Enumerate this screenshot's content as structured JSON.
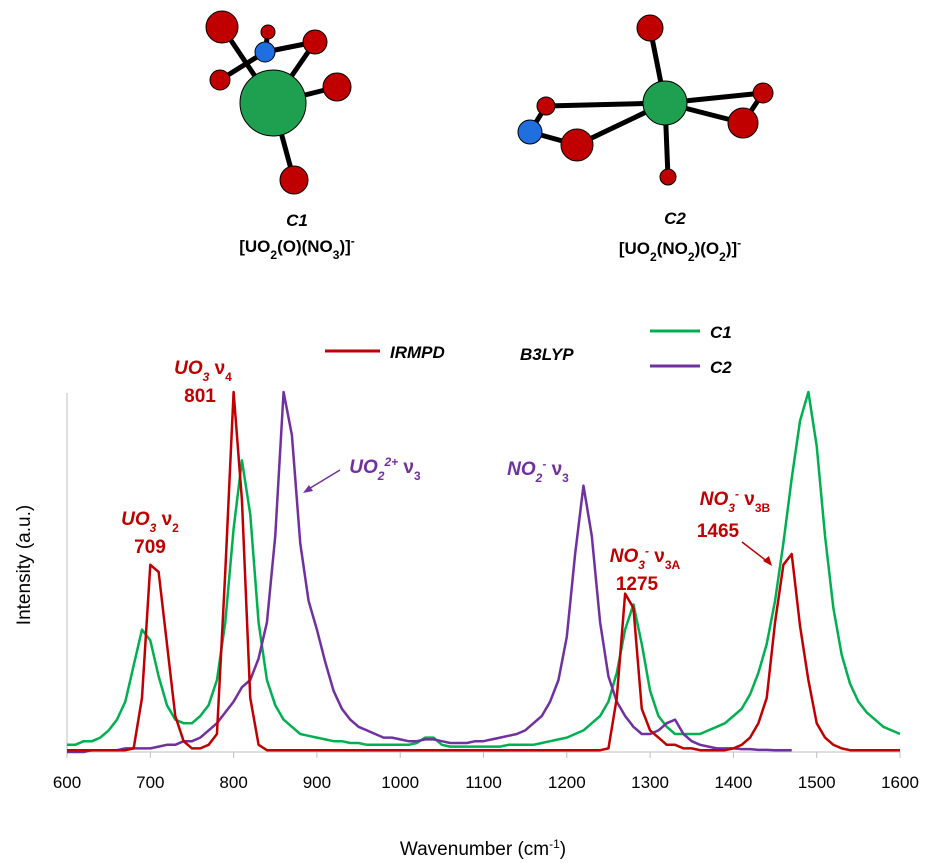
{
  "structures": [
    {
      "name": "C1",
      "formula": [
        "[UO",
        "2",
        "(O)(NO",
        "3",
        ")]",
        "-"
      ]
    },
    {
      "name": "C2",
      "formula": [
        "[UO",
        "2",
        "(NO",
        "2",
        ")(O",
        "2",
        ")]",
        "-"
      ]
    }
  ],
  "chart_data": {
    "type": "line",
    "x_label": [
      "Wavenumber (cm",
      "-1",
      ")"
    ],
    "y_label": "Intensity (a.u.)",
    "legend_group": "B3LYP",
    "xlim": [
      600,
      1600
    ],
    "ylim": [
      0,
      1
    ],
    "xticks": [
      600,
      700,
      800,
      900,
      1000,
      1100,
      1200,
      1300,
      1400,
      1500,
      1600
    ],
    "x": [
      600,
      610,
      620,
      630,
      640,
      650,
      660,
      670,
      680,
      690,
      700,
      710,
      720,
      730,
      740,
      750,
      760,
      770,
      780,
      790,
      800,
      810,
      820,
      830,
      840,
      850,
      860,
      870,
      880,
      890,
      900,
      910,
      920,
      930,
      940,
      950,
      960,
      970,
      980,
      990,
      1000,
      1010,
      1020,
      1030,
      1040,
      1050,
      1060,
      1070,
      1080,
      1090,
      1100,
      1110,
      1120,
      1130,
      1140,
      1150,
      1160,
      1170,
      1180,
      1190,
      1200,
      1210,
      1220,
      1230,
      1240,
      1250,
      1260,
      1270,
      1280,
      1290,
      1300,
      1310,
      1320,
      1330,
      1340,
      1350,
      1360,
      1370,
      1380,
      1390,
      1400,
      1410,
      1420,
      1430,
      1440,
      1450,
      1460,
      1470,
      1480,
      1490,
      1500,
      1510,
      1520,
      1530,
      1540,
      1550,
      1560,
      1570,
      1580,
      1590,
      1600
    ],
    "series": [
      {
        "name": "IRMPD",
        "color": "#c00000",
        "values": [
          0.005,
          0.005,
          0.005,
          0.005,
          0.005,
          0.005,
          0.005,
          0.005,
          0.01,
          0.15,
          0.52,
          0.5,
          0.3,
          0.1,
          0.03,
          0.01,
          0.01,
          0.02,
          0.05,
          0.5,
          1.0,
          0.7,
          0.15,
          0.02,
          0.005,
          0.005,
          0.005,
          0.005,
          0.005,
          0.005,
          0.005,
          0.005,
          0.005,
          0.005,
          0.005,
          0.005,
          0.005,
          0.005,
          0.005,
          0.005,
          0.005,
          0.005,
          0.005,
          0.005,
          0.005,
          0.005,
          0.005,
          0.005,
          0.005,
          0.005,
          0.005,
          0.005,
          0.005,
          0.005,
          0.005,
          0.005,
          0.005,
          0.005,
          0.005,
          0.005,
          0.005,
          0.005,
          0.005,
          0.005,
          0.005,
          0.01,
          0.15,
          0.44,
          0.4,
          0.12,
          0.06,
          0.04,
          0.02,
          0.02,
          0.01,
          0.01,
          0.005,
          0.005,
          0.005,
          0.005,
          0.01,
          0.02,
          0.04,
          0.08,
          0.15,
          0.36,
          0.52,
          0.55,
          0.35,
          0.2,
          0.08,
          0.04,
          0.02,
          0.01,
          0.005,
          0.005,
          0.005,
          0.005,
          0.005,
          0.005,
          0.005
        ]
      },
      {
        "name": "C1",
        "color": "#00b050",
        "values": [
          0.02,
          0.02,
          0.03,
          0.03,
          0.04,
          0.06,
          0.09,
          0.14,
          0.24,
          0.34,
          0.31,
          0.21,
          0.13,
          0.09,
          0.08,
          0.08,
          0.1,
          0.13,
          0.2,
          0.36,
          0.62,
          0.81,
          0.66,
          0.36,
          0.2,
          0.13,
          0.09,
          0.07,
          0.05,
          0.045,
          0.04,
          0.035,
          0.03,
          0.03,
          0.025,
          0.025,
          0.02,
          0.02,
          0.02,
          0.02,
          0.02,
          0.02,
          0.025,
          0.04,
          0.04,
          0.02,
          0.015,
          0.015,
          0.015,
          0.015,
          0.015,
          0.015,
          0.015,
          0.02,
          0.02,
          0.02,
          0.02,
          0.025,
          0.03,
          0.035,
          0.04,
          0.05,
          0.06,
          0.08,
          0.1,
          0.14,
          0.22,
          0.34,
          0.41,
          0.3,
          0.17,
          0.1,
          0.07,
          0.05,
          0.05,
          0.05,
          0.05,
          0.06,
          0.07,
          0.08,
          0.1,
          0.12,
          0.16,
          0.22,
          0.3,
          0.42,
          0.58,
          0.76,
          0.92,
          1.0,
          0.85,
          0.6,
          0.4,
          0.27,
          0.19,
          0.14,
          0.11,
          0.09,
          0.07,
          0.06,
          0.05
        ]
      },
      {
        "name": "C2",
        "color": "#7030a0",
        "values": [
          0,
          0,
          0,
          0.005,
          0.005,
          0.005,
          0.005,
          0.01,
          0.01,
          0.01,
          0.01,
          0.015,
          0.02,
          0.02,
          0.03,
          0.03,
          0.04,
          0.06,
          0.08,
          0.11,
          0.14,
          0.18,
          0.2,
          0.26,
          0.36,
          0.6,
          1.0,
          0.88,
          0.58,
          0.42,
          0.34,
          0.25,
          0.17,
          0.12,
          0.09,
          0.07,
          0.06,
          0.05,
          0.04,
          0.04,
          0.035,
          0.03,
          0.03,
          0.035,
          0.035,
          0.03,
          0.025,
          0.025,
          0.025,
          0.03,
          0.03,
          0.035,
          0.04,
          0.045,
          0.05,
          0.06,
          0.08,
          0.1,
          0.14,
          0.2,
          0.32,
          0.55,
          0.74,
          0.6,
          0.36,
          0.21,
          0.14,
          0.1,
          0.07,
          0.05,
          0.05,
          0.06,
          0.08,
          0.09,
          0.05,
          0.03,
          0.02,
          0.015,
          0.01,
          0.01,
          0.01,
          0.008,
          0.008,
          0.006,
          0.006,
          0.005,
          0.005,
          0.005,
          null,
          null,
          null,
          null,
          null,
          null,
          null,
          null,
          null,
          null,
          null,
          null,
          null
        ]
      }
    ],
    "annotations": [
      {
        "parts": [
          "UO",
          "3",
          " ν",
          "2"
        ],
        "label": "709",
        "color": "#c00000"
      },
      {
        "parts": [
          "UO",
          "3",
          " ν",
          "4"
        ],
        "label": "801",
        "color": "#c00000"
      },
      {
        "parts": [
          "UO",
          "2",
          "2+",
          " ν",
          "3"
        ],
        "color": "#7030a0"
      },
      {
        "parts": [
          "NO",
          "2",
          "-",
          " ν",
          "3"
        ],
        "color": "#7030a0"
      },
      {
        "parts": [
          "NO",
          "3",
          "-",
          " ν",
          "3A"
        ],
        "label": "1275",
        "color": "#c00000"
      },
      {
        "parts": [
          "NO",
          "3",
          "-",
          " ν",
          "3B"
        ],
        "label": "1465",
        "color": "#c00000"
      }
    ]
  }
}
